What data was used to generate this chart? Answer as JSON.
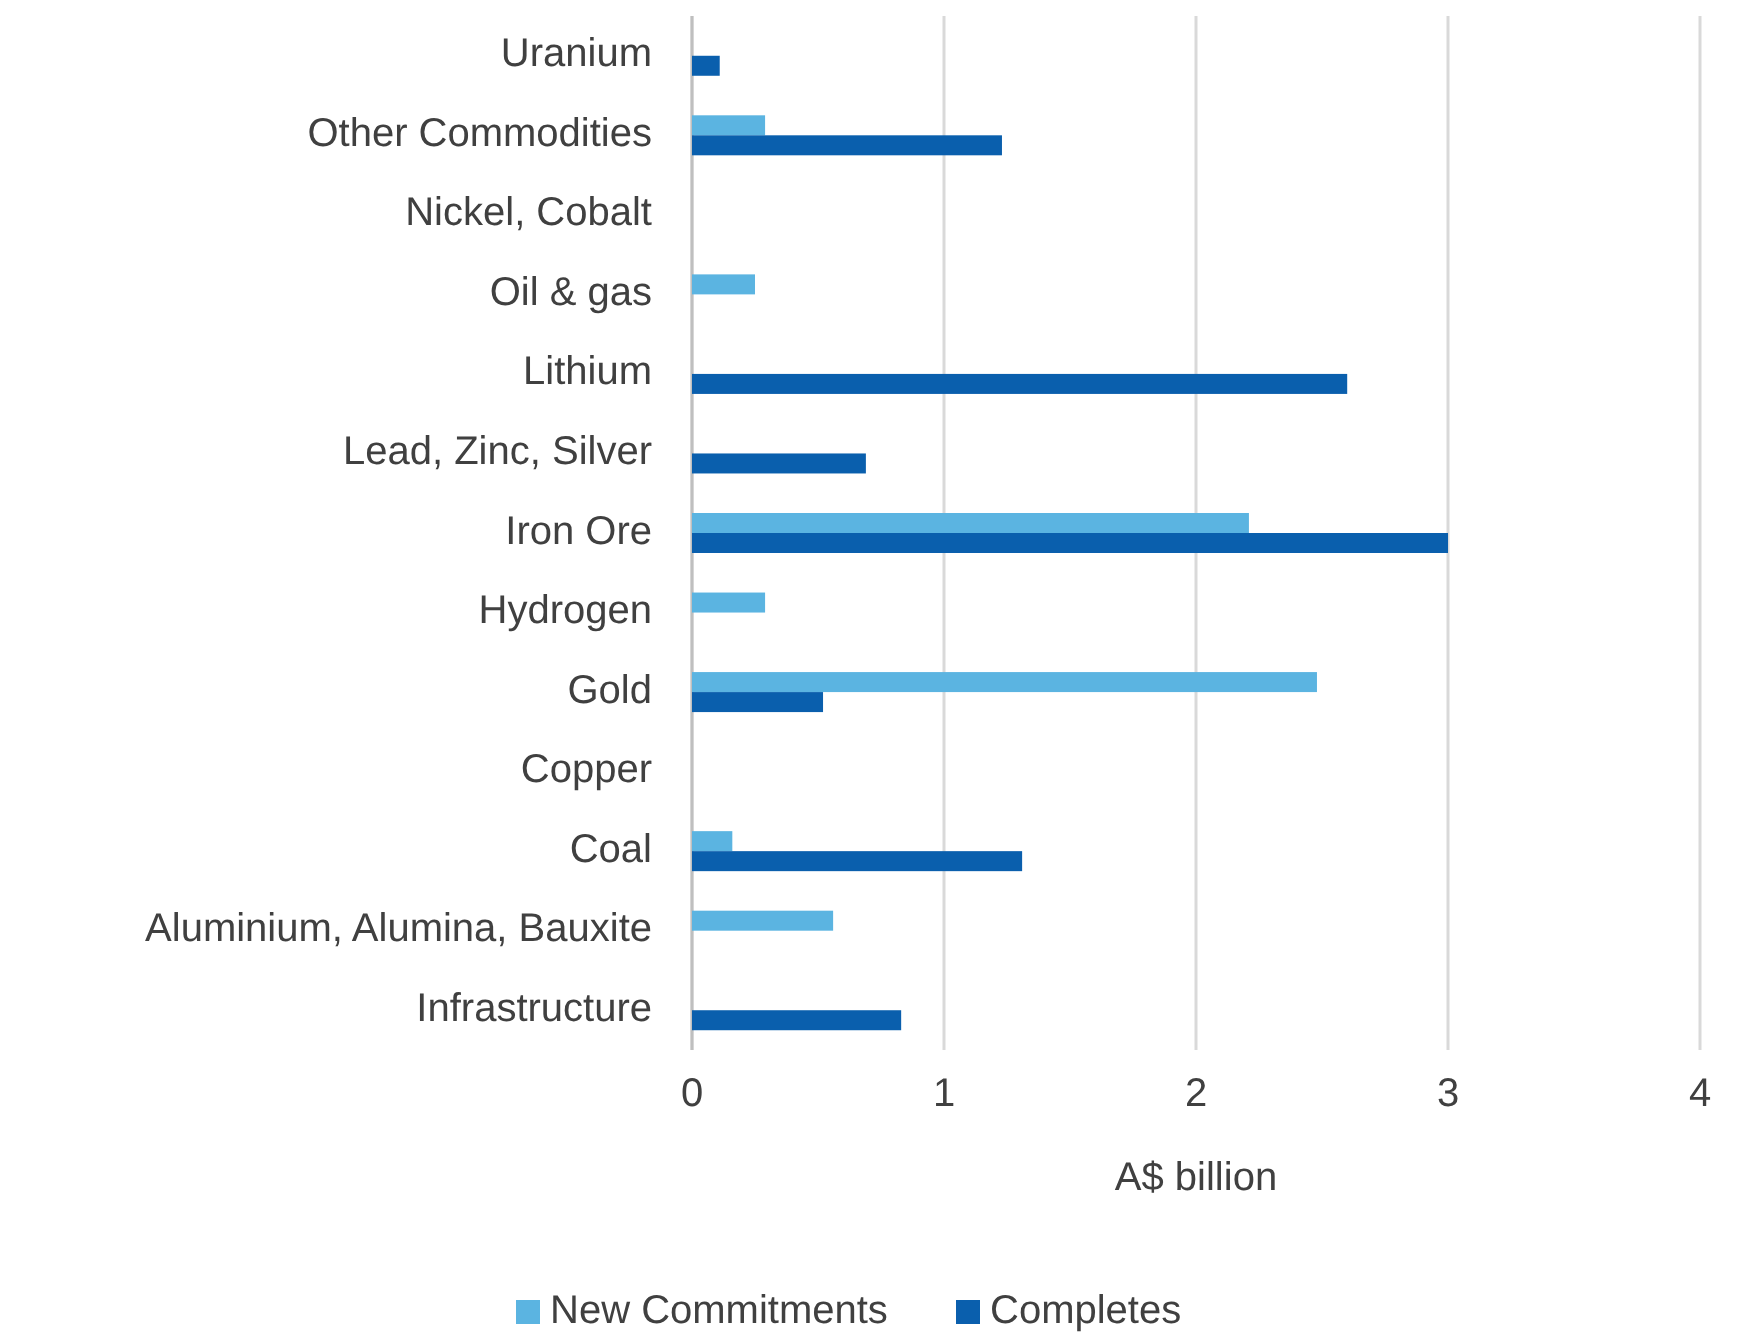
{
  "chart_data": {
    "type": "bar",
    "orientation": "horizontal",
    "xlabel": "A$ billion",
    "categories": [
      "Uranium",
      "Other Commodities",
      "Nickel, Cobalt",
      "Oil & gas",
      "Lithium",
      "Lead, Zinc, Silver",
      "Iron Ore",
      "Hydrogen",
      "Gold",
      "Copper",
      "Coal",
      "Aluminium, Alumina, Bauxite",
      "Infrastructure"
    ],
    "series": [
      {
        "name": "New Commitments",
        "color": "#5bb4e1",
        "values": [
          null,
          0.29,
          null,
          0.25,
          null,
          null,
          2.21,
          0.29,
          2.48,
          null,
          0.16,
          0.56,
          null
        ]
      },
      {
        "name": "Completes",
        "color": "#0a5fad",
        "values": [
          0.11,
          1.23,
          null,
          null,
          2.6,
          0.69,
          3.0,
          null,
          0.52,
          null,
          1.31,
          null,
          0.83
        ]
      }
    ],
    "xlim": [
      0,
      4
    ],
    "xticks": [
      0,
      1,
      2,
      3,
      4
    ],
    "grid": "x",
    "legend": "bottom"
  }
}
